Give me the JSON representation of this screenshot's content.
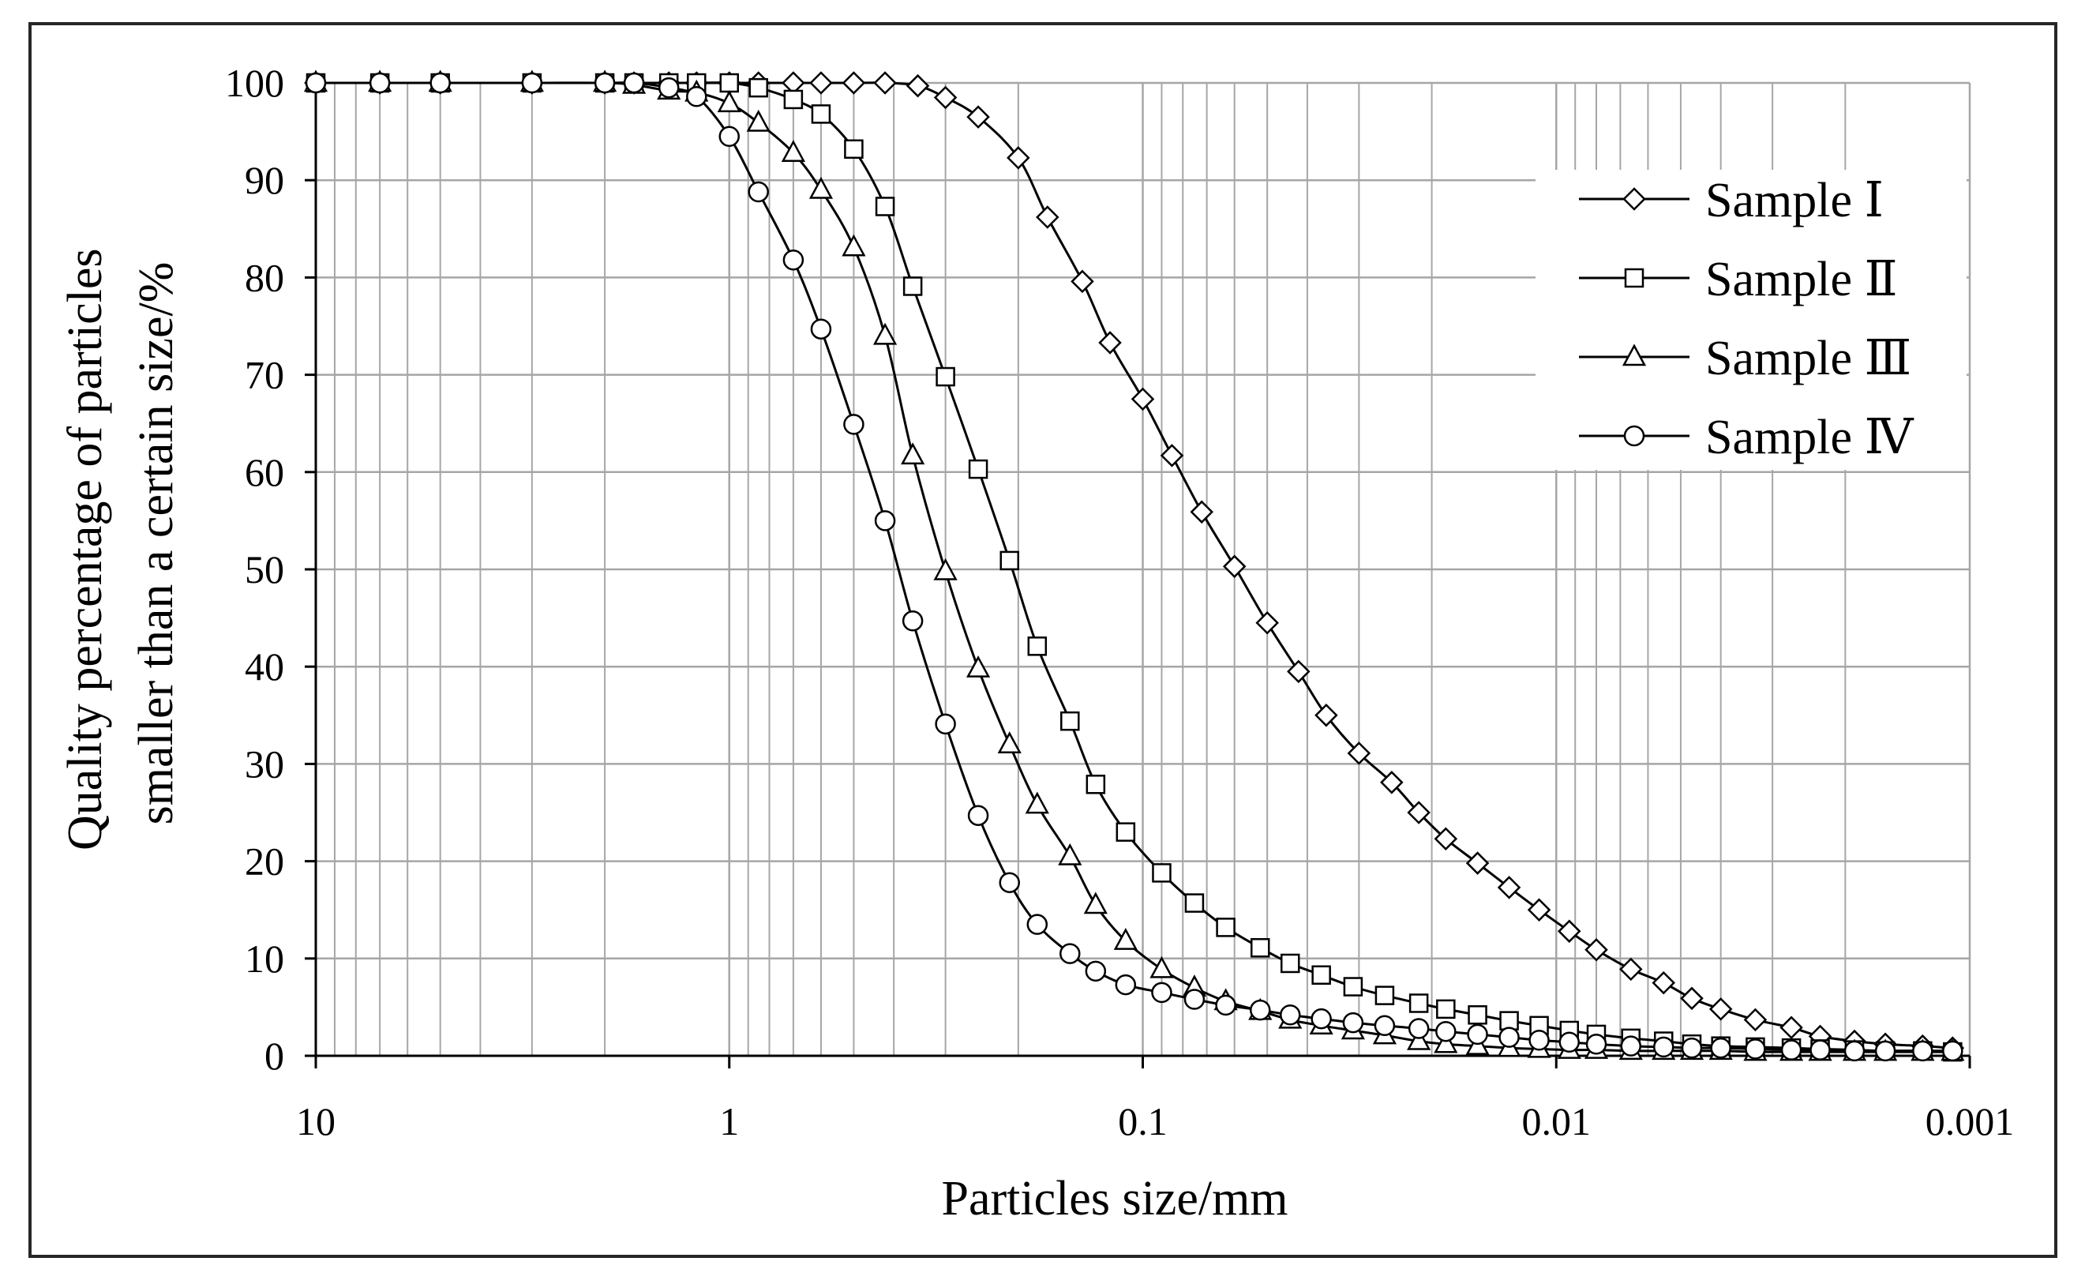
{
  "chart_data": {
    "type": "line",
    "title": "",
    "xlabel": "Particles size/mm",
    "ylabel_lines": [
      "Quality percentage of particles",
      "smaller than a certain size/%"
    ],
    "x_scale": "log",
    "x_reversed": true,
    "xlim": [
      10,
      0.001
    ],
    "ylim": [
      0,
      100
    ],
    "x_ticks": [
      10,
      1,
      0.1,
      0.01,
      0.001
    ],
    "x_tick_labels": [
      "10",
      "1",
      "0.1",
      "0.01",
      "0.001"
    ],
    "y_ticks": [
      0,
      10,
      20,
      30,
      40,
      50,
      60,
      70,
      80,
      90,
      100
    ],
    "y_tick_labels": [
      "0",
      "10",
      "20",
      "30",
      "40",
      "50",
      "60",
      "70",
      "80",
      "90",
      "100"
    ],
    "grid": true,
    "legend_position": "top-right",
    "colors": {
      "line": "#000000",
      "grid": "#a6a6a6",
      "frame": "#262626",
      "background": "#ffffff"
    },
    "series": [
      {
        "name": "Sample Ⅰ",
        "marker": "diamond",
        "points": [
          [
            10,
            100
          ],
          [
            7,
            100
          ],
          [
            5,
            100
          ],
          [
            3,
            100
          ],
          [
            2,
            100
          ],
          [
            1.7,
            100
          ],
          [
            1.4,
            100
          ],
          [
            1.2,
            100
          ],
          [
            1,
            100
          ],
          [
            0.85,
            100
          ],
          [
            0.7,
            100
          ],
          [
            0.6,
            100
          ],
          [
            0.5,
            100
          ],
          [
            0.42,
            100
          ],
          [
            0.35,
            99.7
          ],
          [
            0.3,
            98.5
          ],
          [
            0.25,
            96.5
          ],
          [
            0.2,
            92.3
          ],
          [
            0.17,
            86.2
          ],
          [
            0.14,
            79.6
          ],
          [
            0.12,
            73.3
          ],
          [
            0.1,
            67.5
          ],
          [
            0.085,
            61.7
          ],
          [
            0.072,
            55.9
          ],
          [
            0.06,
            50.3
          ],
          [
            0.05,
            44.5
          ],
          [
            0.042,
            39.5
          ],
          [
            0.036,
            35.0
          ],
          [
            0.03,
            31.1
          ],
          [
            0.025,
            28.1
          ],
          [
            0.0215,
            25.0
          ],
          [
            0.0185,
            22.3
          ],
          [
            0.0155,
            19.8
          ],
          [
            0.013,
            17.3
          ],
          [
            0.011,
            15.0
          ],
          [
            0.0093,
            12.8
          ],
          [
            0.008,
            10.9
          ],
          [
            0.0066,
            8.9
          ],
          [
            0.0055,
            7.5
          ],
          [
            0.0047,
            5.9
          ],
          [
            0.004,
            4.8
          ],
          [
            0.0033,
            3.7
          ],
          [
            0.0027,
            2.9
          ],
          [
            0.0023,
            2.0
          ],
          [
            0.0019,
            1.5
          ],
          [
            0.0016,
            1.2
          ],
          [
            0.0013,
            1.0
          ],
          [
            0.0011,
            0.8
          ]
        ]
      },
      {
        "name": "Sample Ⅱ",
        "marker": "square",
        "points": [
          [
            10,
            100
          ],
          [
            7,
            100
          ],
          [
            5,
            100
          ],
          [
            3,
            100
          ],
          [
            2,
            100
          ],
          [
            1.7,
            100
          ],
          [
            1.4,
            100
          ],
          [
            1.2,
            100
          ],
          [
            1,
            100
          ],
          [
            0.85,
            99.5
          ],
          [
            0.7,
            98.3
          ],
          [
            0.6,
            96.8
          ],
          [
            0.5,
            93.2
          ],
          [
            0.42,
            87.3
          ],
          [
            0.36,
            79.1
          ],
          [
            0.3,
            69.8
          ],
          [
            0.25,
            60.3
          ],
          [
            0.21,
            50.9
          ],
          [
            0.18,
            42.1
          ],
          [
            0.15,
            34.4
          ],
          [
            0.13,
            27.9
          ],
          [
            0.11,
            23.0
          ],
          [
            0.09,
            18.8
          ],
          [
            0.075,
            15.7
          ],
          [
            0.063,
            13.2
          ],
          [
            0.052,
            11.1
          ],
          [
            0.044,
            9.5
          ],
          [
            0.037,
            8.3
          ],
          [
            0.031,
            7.1
          ],
          [
            0.026,
            6.2
          ],
          [
            0.0215,
            5.4
          ],
          [
            0.0185,
            4.8
          ],
          [
            0.0155,
            4.2
          ],
          [
            0.013,
            3.6
          ],
          [
            0.011,
            3.1
          ],
          [
            0.0093,
            2.6
          ],
          [
            0.008,
            2.2
          ],
          [
            0.0066,
            1.8
          ],
          [
            0.0055,
            1.5
          ],
          [
            0.0047,
            1.2
          ],
          [
            0.004,
            1.0
          ],
          [
            0.0033,
            0.9
          ],
          [
            0.0027,
            0.8
          ],
          [
            0.0023,
            0.7
          ],
          [
            0.0019,
            0.6
          ],
          [
            0.0016,
            0.5
          ],
          [
            0.0013,
            0.5
          ],
          [
            0.0011,
            0.4
          ]
        ]
      },
      {
        "name": "Sample Ⅲ",
        "marker": "triangle",
        "points": [
          [
            10,
            100
          ],
          [
            7,
            100
          ],
          [
            5,
            100
          ],
          [
            3,
            100
          ],
          [
            2,
            100
          ],
          [
            1.7,
            99.8
          ],
          [
            1.4,
            99.2
          ],
          [
            1.2,
            99.0
          ],
          [
            1,
            97.9
          ],
          [
            0.85,
            95.9
          ],
          [
            0.7,
            92.8
          ],
          [
            0.6,
            89.0
          ],
          [
            0.5,
            83.1
          ],
          [
            0.42,
            74.0
          ],
          [
            0.36,
            61.7
          ],
          [
            0.3,
            49.8
          ],
          [
            0.25,
            39.8
          ],
          [
            0.21,
            32.0
          ],
          [
            0.18,
            25.8
          ],
          [
            0.15,
            20.5
          ],
          [
            0.13,
            15.5
          ],
          [
            0.11,
            11.8
          ],
          [
            0.09,
            8.9
          ],
          [
            0.075,
            7.0
          ],
          [
            0.063,
            5.6
          ],
          [
            0.052,
            4.6
          ],
          [
            0.044,
            3.7
          ],
          [
            0.037,
            3.1
          ],
          [
            0.031,
            2.6
          ],
          [
            0.026,
            2.1
          ],
          [
            0.0215,
            1.5
          ],
          [
            0.0185,
            1.2
          ],
          [
            0.0155,
            1.0
          ],
          [
            0.013,
            0.8
          ],
          [
            0.011,
            0.7
          ],
          [
            0.0093,
            0.6
          ],
          [
            0.008,
            0.6
          ],
          [
            0.0066,
            0.5
          ],
          [
            0.0055,
            0.5
          ],
          [
            0.0047,
            0.5
          ],
          [
            0.004,
            0.5
          ],
          [
            0.0033,
            0.4
          ],
          [
            0.0027,
            0.4
          ],
          [
            0.0023,
            0.4
          ],
          [
            0.0019,
            0.4
          ],
          [
            0.0016,
            0.4
          ],
          [
            0.0013,
            0.4
          ],
          [
            0.0011,
            0.4
          ]
        ]
      },
      {
        "name": "Sample Ⅳ",
        "marker": "circle",
        "points": [
          [
            10,
            100
          ],
          [
            7,
            100
          ],
          [
            5,
            100
          ],
          [
            3,
            100
          ],
          [
            2,
            100
          ],
          [
            1.7,
            100
          ],
          [
            1.4,
            99.5
          ],
          [
            1.2,
            98.6
          ],
          [
            1,
            94.5
          ],
          [
            0.85,
            88.8
          ],
          [
            0.7,
            81.8
          ],
          [
            0.6,
            74.7
          ],
          [
            0.5,
            64.9
          ],
          [
            0.42,
            55.0
          ],
          [
            0.36,
            44.7
          ],
          [
            0.3,
            34.1
          ],
          [
            0.25,
            24.7
          ],
          [
            0.21,
            17.8
          ],
          [
            0.18,
            13.5
          ],
          [
            0.15,
            10.5
          ],
          [
            0.13,
            8.7
          ],
          [
            0.11,
            7.3
          ],
          [
            0.09,
            6.5
          ],
          [
            0.075,
            5.8
          ],
          [
            0.063,
            5.2
          ],
          [
            0.052,
            4.7
          ],
          [
            0.044,
            4.2
          ],
          [
            0.037,
            3.8
          ],
          [
            0.031,
            3.4
          ],
          [
            0.026,
            3.1
          ],
          [
            0.0215,
            2.8
          ],
          [
            0.0185,
            2.5
          ],
          [
            0.0155,
            2.2
          ],
          [
            0.013,
            1.9
          ],
          [
            0.011,
            1.6
          ],
          [
            0.0093,
            1.4
          ],
          [
            0.008,
            1.2
          ],
          [
            0.0066,
            1.0
          ],
          [
            0.0055,
            0.9
          ],
          [
            0.0047,
            0.8
          ],
          [
            0.004,
            0.8
          ],
          [
            0.0033,
            0.7
          ],
          [
            0.0027,
            0.6
          ],
          [
            0.0023,
            0.6
          ],
          [
            0.0019,
            0.5
          ],
          [
            0.0016,
            0.5
          ],
          [
            0.0013,
            0.5
          ],
          [
            0.0011,
            0.5
          ]
        ]
      }
    ]
  }
}
